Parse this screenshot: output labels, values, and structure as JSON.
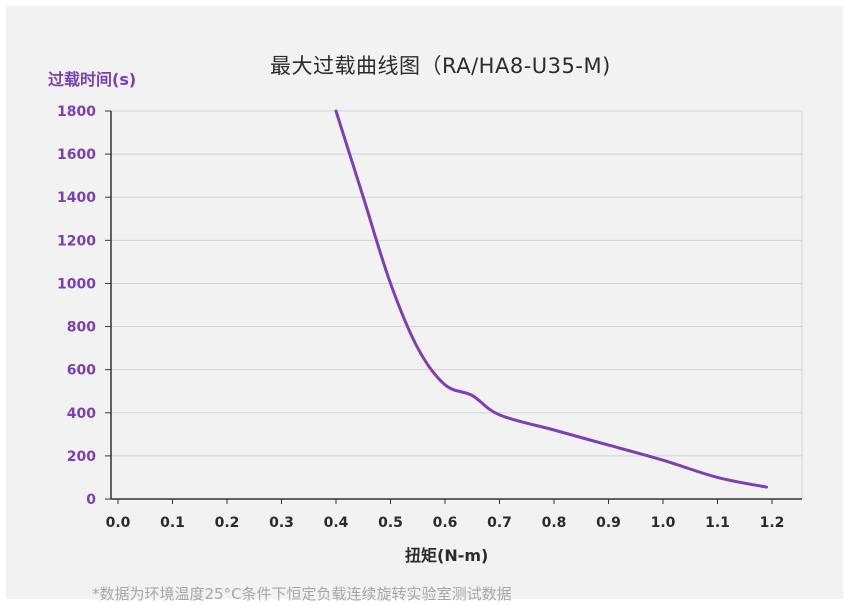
{
  "colors": {
    "curve": "#7e3fb2",
    "ytick": "#7b3fb0",
    "xtick": "#2b2b2b",
    "grid": "#d4d4d4",
    "axis": "#333333",
    "panel": "#f2f2f2"
  },
  "chart_data": {
    "type": "line",
    "title": "最大过载曲线图（RA/HA8-U35-M)",
    "ylabel": "过载时间(s)",
    "xlabel": "扭矩(N-m)",
    "xlim": [
      0,
      1.2
    ],
    "ylim": [
      0,
      1800
    ],
    "xticks": [
      "0.0",
      "0.1",
      "0.2",
      "0.3",
      "0.4",
      "0.5",
      "0.6",
      "0.7",
      "0.8",
      "0.9",
      "1.0",
      "1.1",
      "1.2"
    ],
    "yticks": [
      "0",
      "200",
      "400",
      "600",
      "800",
      "1000",
      "1200",
      "1400",
      "1600",
      "1800"
    ],
    "grid": "horizontal",
    "series": [
      {
        "x": [
          0.4,
          0.45,
          0.5,
          0.55,
          0.6,
          0.65,
          0.7,
          0.8,
          0.9,
          1.0,
          1.1,
          1.19
        ],
        "y": [
          1800,
          1400,
          1000,
          700,
          530,
          480,
          390,
          320,
          250,
          180,
          100,
          55
        ]
      }
    ]
  },
  "footnote": "*数据为环境温度25°C条件下恒定负载连续旋转实验室测试数据"
}
